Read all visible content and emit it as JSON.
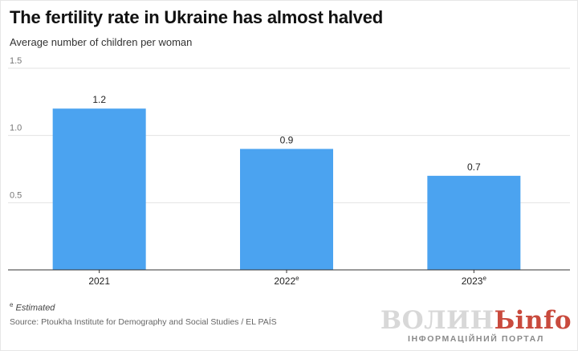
{
  "header": {
    "title": "The fertility rate in Ukraine has almost halved",
    "subtitle": "Average number of children per woman"
  },
  "chart_data": {
    "type": "bar",
    "title": "The fertility rate in Ukraine has almost halved",
    "ylabel": "Average number of children per woman",
    "xlabel": "",
    "categories": [
      "2021",
      "2022",
      "2023"
    ],
    "category_superscripts": [
      "",
      "e",
      "e"
    ],
    "values": [
      1.2,
      0.9,
      0.7
    ],
    "data_labels": [
      "1.2",
      "0.9",
      "0.7"
    ],
    "ylim": [
      0,
      1.5
    ],
    "yticks": [
      0.5,
      1.0,
      1.5
    ],
    "ytick_labels": [
      "0.5",
      "1.0",
      "1.5"
    ],
    "grid": true,
    "bar_color": "#4ba3f0",
    "grid_color": "#e3e3e3",
    "axis_color": "#333333"
  },
  "footer": {
    "note_marker": "e",
    "note_text": "Estimated",
    "source": "Source: Ptoukha Institute for Demography and Social Studies / EL PAÍS"
  },
  "watermark": {
    "part_a": "ВОЛИН",
    "part_b": "Ь",
    "part_c": "info",
    "tagline": "ІНФОРМАЦІЙНИЙ ПОРТАЛ"
  }
}
